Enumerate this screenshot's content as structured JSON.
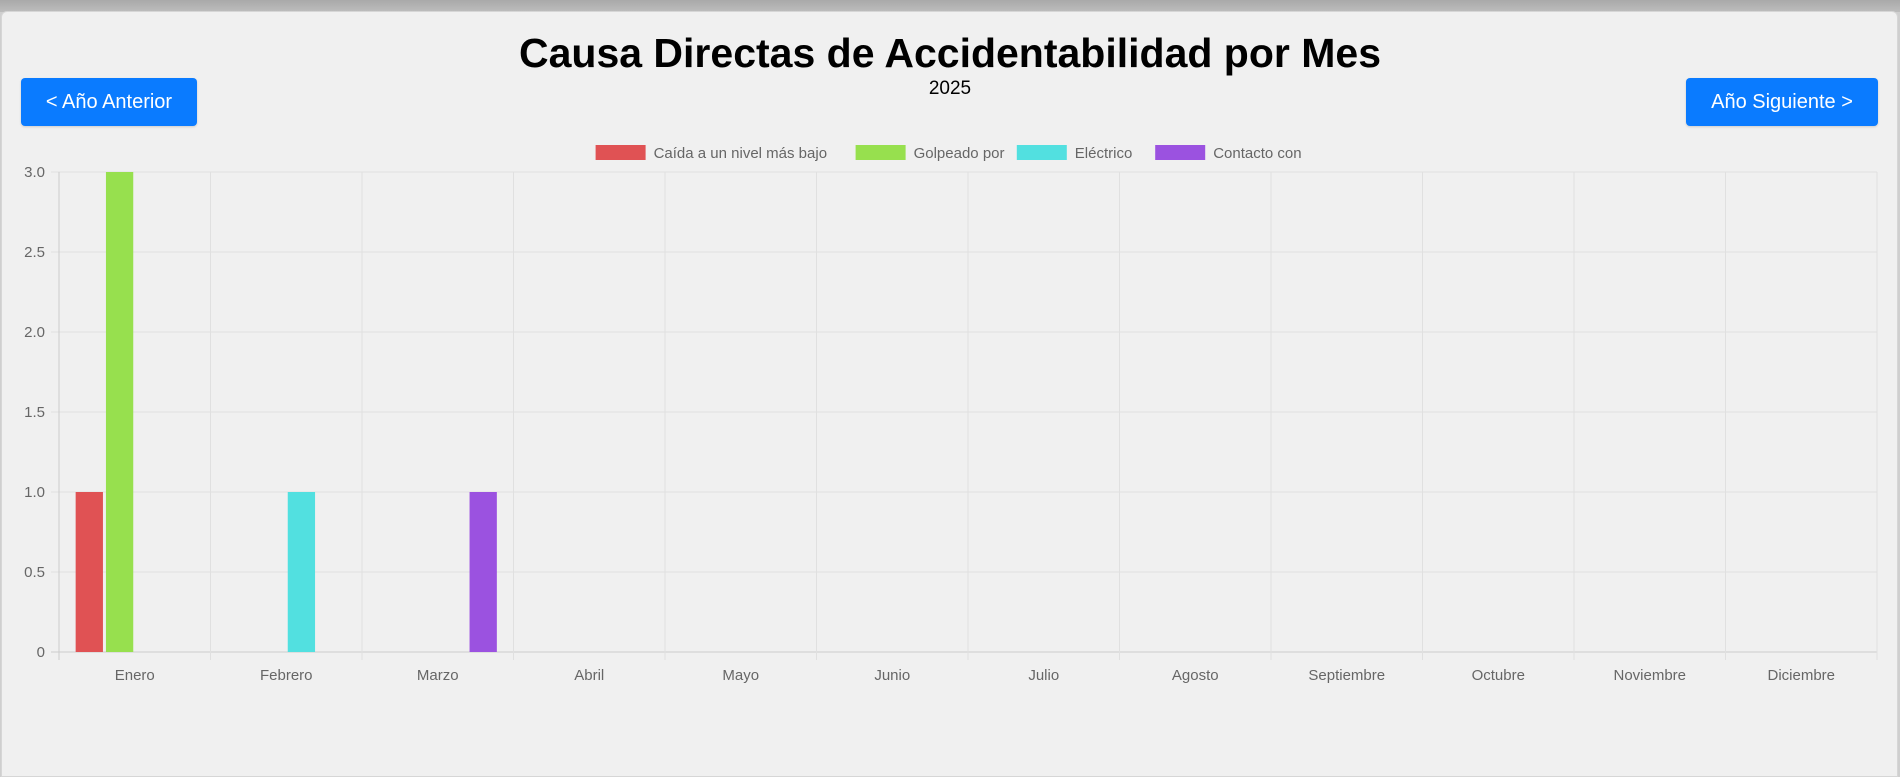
{
  "header": {
    "title": "Causa Directas de Accidentabilidad por Mes",
    "year": "2025",
    "prev_label": "< Año Anterior",
    "next_label": "Año Siguiente >"
  },
  "colors": {
    "button": "#0a7bff",
    "grid": "#e0e0e0",
    "axis": "#cccccc",
    "tick_text": "#666666"
  },
  "chart_data": {
    "type": "bar",
    "title": "",
    "xlabel": "",
    "ylabel": "",
    "categories": [
      "Enero",
      "Febrero",
      "Marzo",
      "Abril",
      "Mayo",
      "Junio",
      "Julio",
      "Agosto",
      "Septiembre",
      "Octubre",
      "Noviembre",
      "Diciembre"
    ],
    "series": [
      {
        "name": "Caída a un nivel más bajo",
        "color": "#e05254",
        "values": [
          1,
          0,
          0,
          0,
          0,
          0,
          0,
          0,
          0,
          0,
          0,
          0
        ]
      },
      {
        "name": "Golpeado por",
        "color": "#97e04e",
        "values": [
          3,
          0,
          0,
          0,
          0,
          0,
          0,
          0,
          0,
          0,
          0,
          0
        ]
      },
      {
        "name": "Eléctrico",
        "color": "#52e0e0",
        "values": [
          0,
          1,
          0,
          0,
          0,
          0,
          0,
          0,
          0,
          0,
          0,
          0
        ]
      },
      {
        "name": "Contacto con",
        "color": "#9b52e0",
        "values": [
          0,
          0,
          1,
          0,
          0,
          0,
          0,
          0,
          0,
          0,
          0,
          0
        ]
      }
    ],
    "yticks": [
      "0",
      "0.5",
      "1.0",
      "1.5",
      "2.0",
      "2.5",
      "3.0"
    ],
    "ylim": [
      0,
      3
    ],
    "grid": true,
    "legend_position": "top"
  }
}
